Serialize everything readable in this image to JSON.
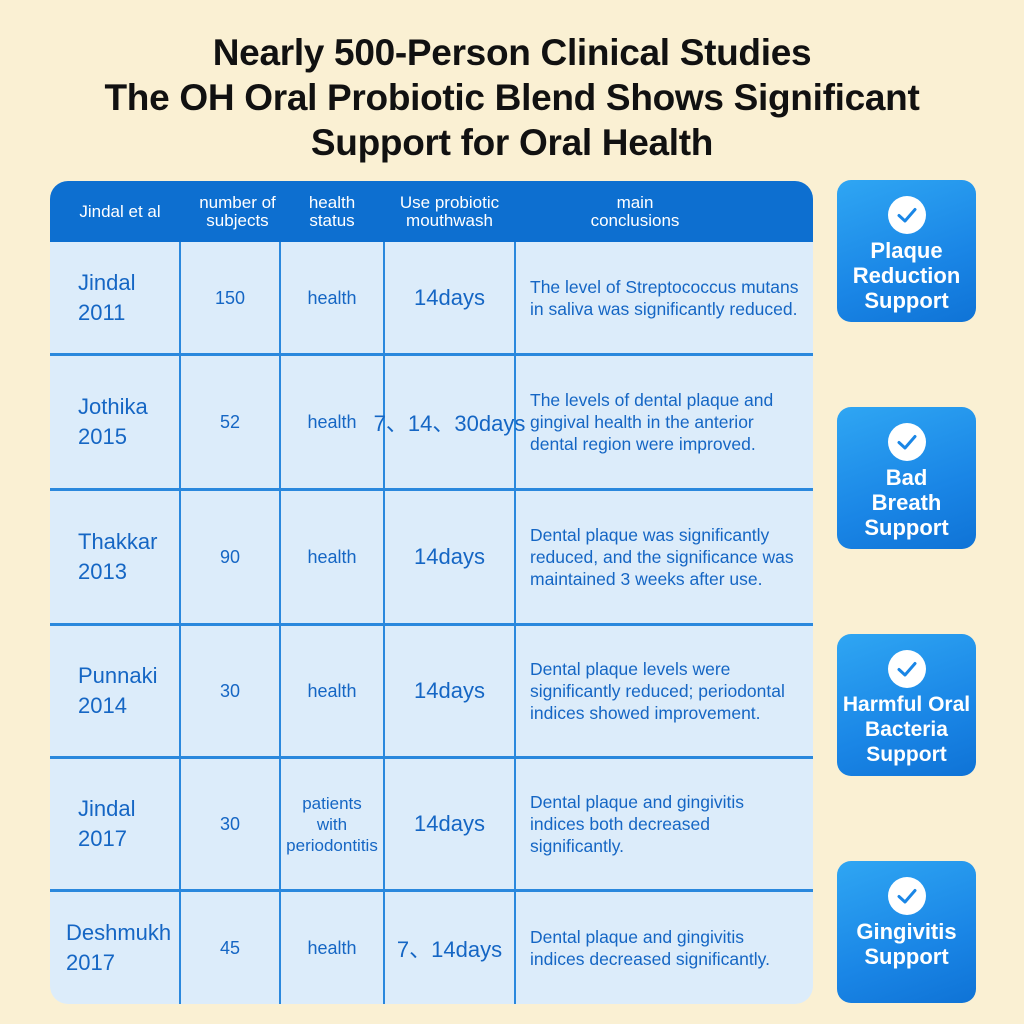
{
  "title": {
    "line1": "Nearly 500-Person Clinical Studies",
    "line2": "The OH Oral Probiotic Blend Shows Significant",
    "line3": "Support for Oral Health"
  },
  "table": {
    "headers": {
      "author": "Jindal et al",
      "subjects": "number of\nsubjects",
      "status": "health\nstatus",
      "use": "Use probiotic\nmouthwash",
      "conclusions": "main\nconclusions"
    },
    "rows": [
      {
        "author": "Jindal\n2011",
        "subjects": "150",
        "status": "health",
        "days": "14days",
        "conclusion": "The level of Streptococcus mutans in saliva was significantly reduced."
      },
      {
        "author": "Jothika\n2015",
        "subjects": "52",
        "status": "health",
        "days": "7、14、30days",
        "conclusion": "The levels of dental plaque and gingival health in the anterior dental region were improved."
      },
      {
        "author": "Thakkar\n2013",
        "subjects": "90",
        "status": "health",
        "days": "14days",
        "conclusion": "Dental plaque was significantly reduced, and the significance was maintained 3 weeks after use."
      },
      {
        "author": "Punnaki\n2014",
        "subjects": "30",
        "status": "health",
        "days": "14days",
        "conclusion": "Dental plaque levels were significantly reduced; periodontal indices showed improvement."
      },
      {
        "author": "Jindal\n2017",
        "subjects": "30",
        "status": "patients\nwith\nperiodontitis",
        "days": "14days",
        "conclusion": "Dental plaque and gingivitis indices both decreased significantly."
      },
      {
        "author": "Deshmukh\n2017",
        "subjects": "45",
        "status": "health",
        "days": "7、14days",
        "conclusion": "Dental plaque and gingivitis indices decreased significantly."
      }
    ]
  },
  "badges": [
    {
      "label": "Plaque\nReduction\nSupport",
      "icon": "check-circle-icon"
    },
    {
      "label": "Bad\nBreath\nSupport",
      "icon": "check-circle-icon"
    },
    {
      "label": "Harmful Oral\nBacteria\nSupport",
      "icon": "check-circle-icon"
    },
    {
      "label": "Gingivitis\nSupport",
      "icon": "check-circle-icon"
    }
  ],
  "colors": {
    "background": "#faf0d3",
    "header": "#0d6fd0",
    "cell_bg": "#dcecfa",
    "cell_text": "#1566c4",
    "badge": "#1a86e6"
  }
}
